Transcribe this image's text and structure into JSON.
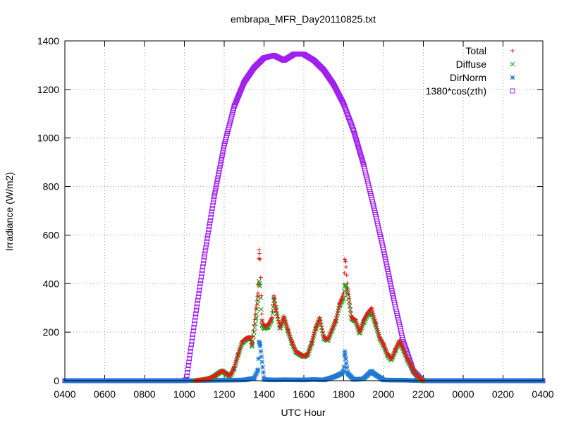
{
  "chart_data": {
    "type": "scatter",
    "title": "embrapa_MFR_Day20110825.txt",
    "xlabel": "UTC Hour",
    "ylabel": "Irradiance (W/m2)",
    "x_tick_labels": [
      "0400",
      "0600",
      "0800",
      "1000",
      "1200",
      "1400",
      "1600",
      "1800",
      "2000",
      "2200",
      "0000",
      "0200",
      "0400"
    ],
    "xlim_hours": [
      4,
      28
    ],
    "ylim": [
      0,
      1400
    ],
    "y_ticks": [
      0,
      200,
      400,
      600,
      800,
      1000,
      1200,
      1400
    ],
    "grid": true,
    "legend_position": "top-right",
    "series": [
      {
        "name": "Total",
        "marker": "+",
        "color": "#e41a1c",
        "points": [
          [
            10.5,
            0
          ],
          [
            11.0,
            5
          ],
          [
            11.3,
            10
          ],
          [
            11.5,
            18
          ],
          [
            11.7,
            30
          ],
          [
            11.9,
            42
          ],
          [
            12.1,
            30
          ],
          [
            12.3,
            20
          ],
          [
            12.5,
            55
          ],
          [
            12.7,
            110
          ],
          [
            12.9,
            160
          ],
          [
            13.1,
            175
          ],
          [
            13.3,
            180
          ],
          [
            13.4,
            150
          ],
          [
            13.5,
            230
          ],
          [
            13.6,
            300
          ],
          [
            13.7,
            360
          ],
          [
            13.75,
            540
          ],
          [
            13.8,
            500
          ],
          [
            13.9,
            250
          ],
          [
            14.0,
            225
          ],
          [
            14.2,
            230
          ],
          [
            14.4,
            260
          ],
          [
            14.5,
            350
          ],
          [
            14.6,
            300
          ],
          [
            14.8,
            220
          ],
          [
            15.0,
            265
          ],
          [
            15.2,
            210
          ],
          [
            15.4,
            160
          ],
          [
            15.6,
            120
          ],
          [
            15.8,
            110
          ],
          [
            16.0,
            100
          ],
          [
            16.2,
            110
          ],
          [
            16.4,
            160
          ],
          [
            16.6,
            220
          ],
          [
            16.8,
            260
          ],
          [
            17.0,
            180
          ],
          [
            17.2,
            170
          ],
          [
            17.4,
            210
          ],
          [
            17.6,
            250
          ],
          [
            17.8,
            320
          ],
          [
            18.0,
            360
          ],
          [
            18.05,
            500
          ],
          [
            18.1,
            490
          ],
          [
            18.2,
            380
          ],
          [
            18.4,
            260
          ],
          [
            18.6,
            250
          ],
          [
            18.8,
            200
          ],
          [
            19.0,
            250
          ],
          [
            19.2,
            280
          ],
          [
            19.4,
            300
          ],
          [
            19.6,
            240
          ],
          [
            19.8,
            180
          ],
          [
            20.0,
            150
          ],
          [
            20.2,
            110
          ],
          [
            20.4,
            90
          ],
          [
            20.6,
            130
          ],
          [
            20.8,
            165
          ],
          [
            21.0,
            130
          ],
          [
            21.2,
            90
          ],
          [
            21.4,
            60
          ],
          [
            21.6,
            30
          ],
          [
            21.8,
            10
          ],
          [
            22.0,
            0
          ]
        ]
      },
      {
        "name": "Diffuse",
        "marker": "x",
        "color": "#1a9e1a",
        "points": [
          [
            10.5,
            0
          ],
          [
            11.0,
            5
          ],
          [
            11.3,
            10
          ],
          [
            11.5,
            18
          ],
          [
            11.7,
            30
          ],
          [
            11.9,
            40
          ],
          [
            12.1,
            28
          ],
          [
            12.3,
            18
          ],
          [
            12.5,
            50
          ],
          [
            12.7,
            105
          ],
          [
            12.9,
            155
          ],
          [
            13.1,
            170
          ],
          [
            13.3,
            178
          ],
          [
            13.4,
            140
          ],
          [
            13.5,
            200
          ],
          [
            13.6,
            260
          ],
          [
            13.7,
            330
          ],
          [
            13.75,
            410
          ],
          [
            13.8,
            390
          ],
          [
            13.9,
            230
          ],
          [
            14.0,
            215
          ],
          [
            14.2,
            220
          ],
          [
            14.4,
            250
          ],
          [
            14.5,
            340
          ],
          [
            14.6,
            290
          ],
          [
            14.8,
            215
          ],
          [
            15.0,
            260
          ],
          [
            15.2,
            205
          ],
          [
            15.4,
            155
          ],
          [
            15.6,
            118
          ],
          [
            15.8,
            108
          ],
          [
            16.0,
            98
          ],
          [
            16.2,
            108
          ],
          [
            16.4,
            155
          ],
          [
            16.6,
            215
          ],
          [
            16.8,
            255
          ],
          [
            17.0,
            175
          ],
          [
            17.2,
            165
          ],
          [
            17.4,
            205
          ],
          [
            17.6,
            245
          ],
          [
            17.8,
            310
          ],
          [
            18.0,
            340
          ],
          [
            18.05,
            390
          ],
          [
            18.1,
            395
          ],
          [
            18.2,
            360
          ],
          [
            18.4,
            255
          ],
          [
            18.6,
            245
          ],
          [
            18.8,
            195
          ],
          [
            19.0,
            240
          ],
          [
            19.2,
            270
          ],
          [
            19.4,
            280
          ],
          [
            19.6,
            230
          ],
          [
            19.8,
            175
          ],
          [
            20.0,
            145
          ],
          [
            20.2,
            105
          ],
          [
            20.4,
            85
          ],
          [
            20.6,
            125
          ],
          [
            20.8,
            160
          ],
          [
            21.0,
            125
          ],
          [
            21.2,
            85
          ],
          [
            21.4,
            55
          ],
          [
            21.6,
            28
          ],
          [
            21.8,
            8
          ],
          [
            22.0,
            0
          ]
        ]
      },
      {
        "name": "DirNorm",
        "marker": "*",
        "color": "#1f78d4",
        "points": [
          [
            4.0,
            0
          ],
          [
            6.0,
            0
          ],
          [
            8.0,
            0
          ],
          [
            10.0,
            0
          ],
          [
            11.0,
            1
          ],
          [
            12.0,
            2
          ],
          [
            13.0,
            3
          ],
          [
            13.5,
            10
          ],
          [
            13.7,
            45
          ],
          [
            13.75,
            160
          ],
          [
            13.8,
            150
          ],
          [
            14.0,
            5
          ],
          [
            14.5,
            3
          ],
          [
            15.0,
            4
          ],
          [
            16.0,
            3
          ],
          [
            16.5,
            5
          ],
          [
            17.0,
            3
          ],
          [
            17.5,
            15
          ],
          [
            17.9,
            30
          ],
          [
            18.0,
            40
          ],
          [
            18.05,
            120
          ],
          [
            18.1,
            90
          ],
          [
            18.2,
            30
          ],
          [
            18.5,
            5
          ],
          [
            19.0,
            8
          ],
          [
            19.4,
            40
          ],
          [
            19.5,
            30
          ],
          [
            20.0,
            3
          ],
          [
            21.0,
            2
          ],
          [
            22.0,
            0
          ],
          [
            24.0,
            0
          ],
          [
            26.0,
            0
          ],
          [
            28.0,
            0
          ]
        ]
      },
      {
        "name": "1380*cos(zth)",
        "marker": "square",
        "color": "#a020f0",
        "points": [
          [
            4.0,
            0
          ],
          [
            6.0,
            0
          ],
          [
            8.0,
            0
          ],
          [
            10.0,
            0
          ],
          [
            10.1,
            5
          ],
          [
            10.3,
            120
          ],
          [
            10.6,
            290
          ],
          [
            11.0,
            510
          ],
          [
            11.5,
            760
          ],
          [
            12.0,
            970
          ],
          [
            12.5,
            1130
          ],
          [
            13.0,
            1230
          ],
          [
            13.5,
            1290
          ],
          [
            14.0,
            1330
          ],
          [
            14.5,
            1340
          ],
          [
            15.0,
            1320
          ],
          [
            15.5,
            1345
          ],
          [
            16.0,
            1345
          ],
          [
            16.5,
            1320
          ],
          [
            17.0,
            1280
          ],
          [
            17.5,
            1220
          ],
          [
            18.0,
            1140
          ],
          [
            18.5,
            1030
          ],
          [
            19.0,
            890
          ],
          [
            19.5,
            720
          ],
          [
            20.0,
            540
          ],
          [
            20.5,
            340
          ],
          [
            21.0,
            160
          ],
          [
            21.5,
            40
          ],
          [
            21.9,
            5
          ],
          [
            22.0,
            0
          ],
          [
            24.0,
            0
          ],
          [
            26.0,
            0
          ],
          [
            28.0,
            0
          ]
        ]
      }
    ]
  }
}
